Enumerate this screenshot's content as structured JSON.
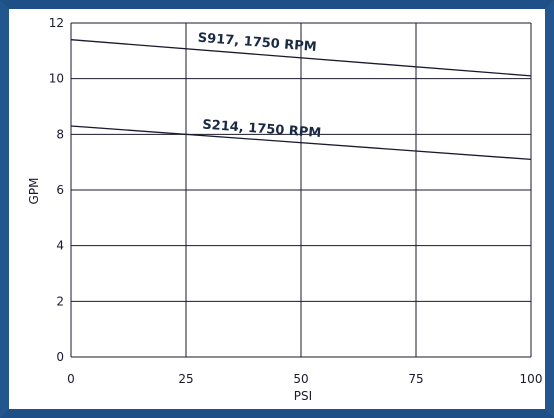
{
  "chart_data": {
    "type": "line",
    "title": "",
    "xlabel": "PSI",
    "ylabel": "GPM",
    "xlim": [
      0,
      100
    ],
    "ylim": [
      0,
      12
    ],
    "x_ticks": [
      "0",
      "25",
      "50",
      "75",
      "100"
    ],
    "y_ticks": [
      "0",
      "2",
      "4",
      "6",
      "8",
      "10",
      "12"
    ],
    "grid": true,
    "series": [
      {
        "name": "S917, 1750 RPM",
        "x": [
          0,
          100
        ],
        "values": [
          11.4,
          10.1
        ]
      },
      {
        "name": "S214, 1750 RPM",
        "x": [
          0,
          100
        ],
        "values": [
          8.3,
          7.1
        ]
      }
    ],
    "colors": {
      "line": "#1a1a2e",
      "grid": "#1a1a2e",
      "frame": "#1e4f86"
    }
  }
}
